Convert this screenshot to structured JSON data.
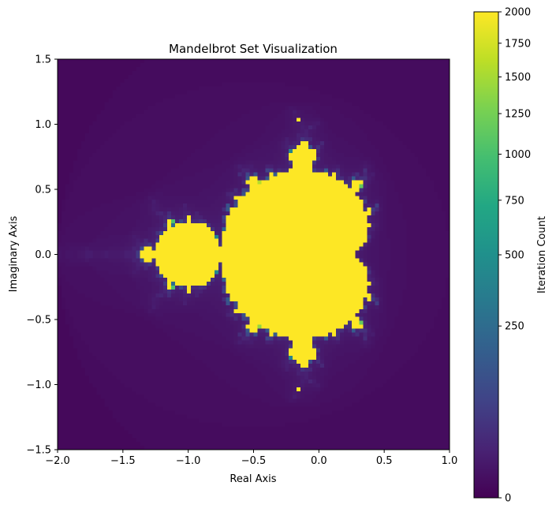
{
  "chart_data": {
    "type": "heatmap",
    "title": "Mandelbrot Set Visualization",
    "xlabel": "Real Axis",
    "ylabel": "Imaginary Axis",
    "xlim": [
      -2.0,
      1.0
    ],
    "ylim": [
      -1.5,
      1.5
    ],
    "xticks": [
      -2.0,
      -1.5,
      -1.0,
      -0.5,
      0.0,
      0.5,
      1.0
    ],
    "xtick_labels": [
      "−2.0",
      "−1.5",
      "−1.0",
      "−0.5",
      "0.0",
      "0.5",
      "1.0"
    ],
    "yticks": [
      -1.5,
      -1.0,
      -0.5,
      0.0,
      0.5,
      1.0,
      1.5
    ],
    "ytick_labels": [
      "−1.5",
      "−1.0",
      "−0.5",
      "0.0",
      "0.5",
      "1.0",
      "1.5"
    ],
    "grid": false,
    "grid_resolution": [
      100,
      100
    ],
    "max_iterations": 2000,
    "colormap": "viridis",
    "color_scale": "sqrt",
    "colorbar": {
      "label": "Iteration Count",
      "range": [
        0,
        2000
      ],
      "ticks": [
        0,
        250,
        500,
        750,
        1000,
        1250,
        1500,
        1750,
        2000
      ],
      "tick_labels": [
        "0",
        "250",
        "500",
        "750",
        "1000",
        "1250",
        "1500",
        "1750",
        "2000"
      ]
    }
  }
}
